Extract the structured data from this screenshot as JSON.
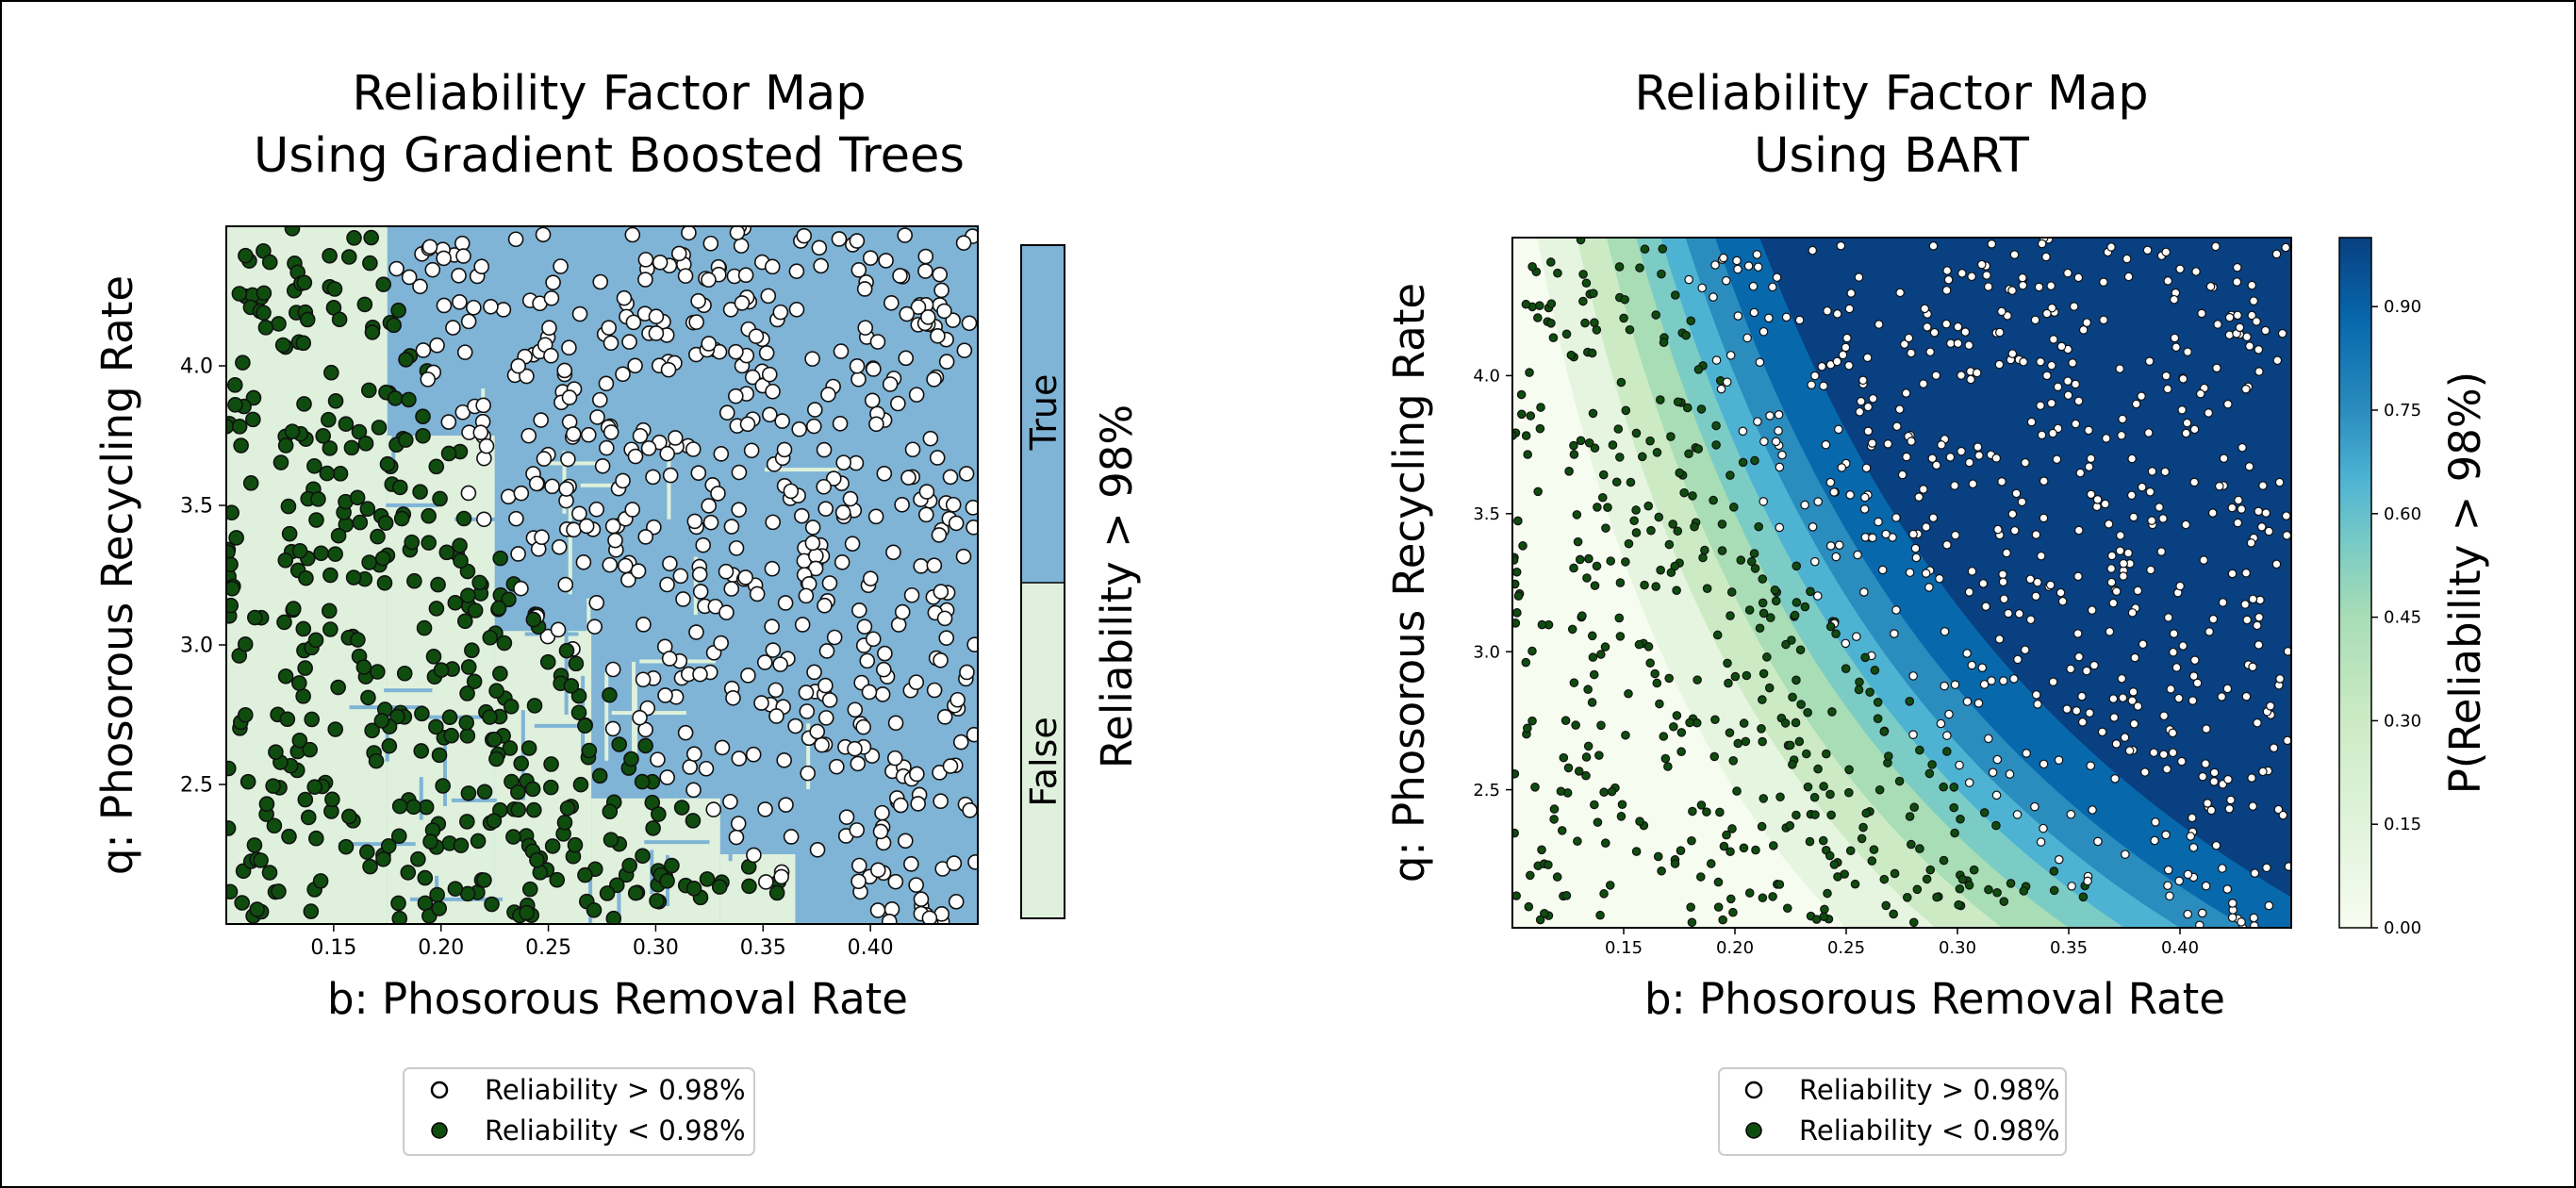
{
  "chart_data": [
    {
      "type": "heatmap",
      "title": [
        "Reliability Factor Map",
        "Using Gradient Boosted Trees"
      ],
      "xlabel": "b: Phosorous Removal Rate",
      "ylabel": "q: Phosorous Recycling Rate",
      "xlim": [
        0.1,
        0.45
      ],
      "ylim": [
        2.0,
        4.5
      ],
      "xticks": [
        "0.15",
        "0.20",
        "0.25",
        "0.30",
        "0.35",
        "0.40"
      ],
      "yticks": [
        "2.5",
        "3.0",
        "3.5",
        "4.0"
      ],
      "colorbar": {
        "label": "Reliability > 98%",
        "categories": [
          "False",
          "True"
        ]
      },
      "decision_regions": [
        {
          "class": "False",
          "x": [
            0.1,
            0.175
          ],
          "y": [
            2.0,
            4.5
          ]
        },
        {
          "class": "False",
          "x": [
            0.175,
            0.225
          ],
          "y": [
            2.0,
            3.75
          ]
        },
        {
          "class": "False",
          "x": [
            0.225,
            0.27
          ],
          "y": [
            2.0,
            3.05
          ]
        },
        {
          "class": "False",
          "x": [
            0.27,
            0.33
          ],
          "y": [
            2.0,
            2.45
          ]
        },
        {
          "class": "False",
          "x": [
            0.33,
            0.365
          ],
          "y": [
            2.0,
            2.25
          ]
        }
      ],
      "grid": false,
      "legend": {
        "position": "bottom-center",
        "entries": [
          "Reliability > 0.98%",
          "Reliability < 0.98%"
        ]
      },
      "series": [
        {
          "name": "Reliability > 0.98%",
          "color": "#ffffff",
          "approx_count": 600,
          "region": "above boundary curve"
        },
        {
          "name": "Reliability < 0.98%",
          "color": "#0f4d0f",
          "approx_count": 380,
          "region": "below boundary curve"
        }
      ],
      "colors": {
        "false_region": "#dff1dc",
        "true_region": "#7fb4d6"
      }
    },
    {
      "type": "heatmap",
      "title": [
        "Reliability Factor Map",
        "Using BART"
      ],
      "xlabel": "b: Phosorous Removal Rate",
      "ylabel": "q: Phosorous Recycling Rate",
      "xlim": [
        0.1,
        0.45
      ],
      "ylim": [
        2.0,
        4.5
      ],
      "xticks": [
        "0.15",
        "0.20",
        "0.25",
        "0.30",
        "0.35",
        "0.40"
      ],
      "yticks": [
        "2.5",
        "3.0",
        "3.5",
        "4.0"
      ],
      "colorbar": {
        "label": "P(Reliability > 98%)",
        "ticks": [
          "0.00",
          "0.15",
          "0.30",
          "0.45",
          "0.60",
          "0.75",
          "0.90"
        ],
        "range": [
          0,
          1
        ],
        "colormap": "GnBu"
      },
      "probability_boundary": {
        "description": "P = 0.5 contour, approximately b * q = 0.77",
        "level_0_5": [
          [
            0.185,
            4.5
          ],
          [
            0.21,
            3.6
          ],
          [
            0.25,
            3.0
          ],
          [
            0.3,
            2.55
          ],
          [
            0.35,
            2.2
          ],
          [
            0.385,
            2.0
          ]
        ]
      },
      "grid": false,
      "legend": {
        "position": "bottom-center",
        "entries": [
          "Reliability > 0.98%",
          "Reliability < 0.98%"
        ]
      },
      "series": [
        {
          "name": "Reliability > 0.98%",
          "color": "#ffffff",
          "approx_count": 600,
          "region": "above boundary curve"
        },
        {
          "name": "Reliability < 0.98%",
          "color": "#0f4d0f",
          "approx_count": 380,
          "region": "below boundary curve"
        }
      ]
    }
  ]
}
